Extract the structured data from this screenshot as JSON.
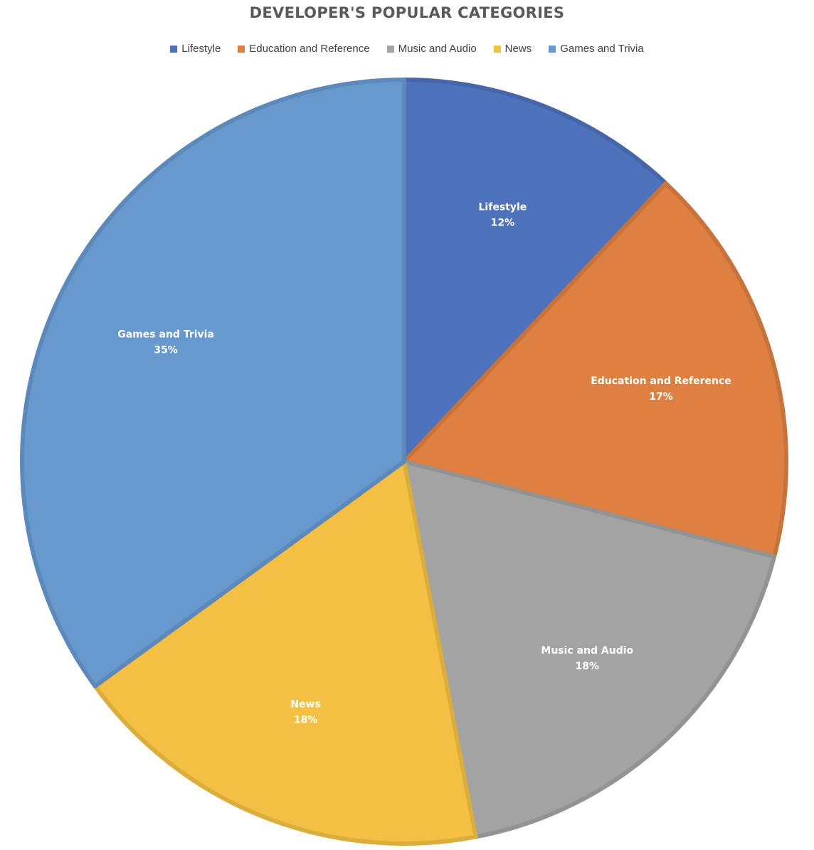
{
  "chart_data": {
    "type": "pie",
    "title": "DEVELOPER'S POPULAR CATEGORIES",
    "legend": "top",
    "categories": [
      "Lifestyle",
      "Education and Reference",
      "Music and Audio",
      "News",
      "Games and Trivia"
    ],
    "values": [
      12,
      17,
      18,
      18,
      35
    ],
    "value_labels": [
      "12%",
      "17%",
      "18%",
      "18%",
      "35%"
    ],
    "colors": [
      "#4E72BC",
      "#DD8042",
      "#A3A3A3",
      "#F4C043",
      "#6798CE"
    ],
    "border_colors": [
      "#4666AA",
      "#C8733B",
      "#939393",
      "#DBAD3C",
      "#5D89BA"
    ]
  }
}
